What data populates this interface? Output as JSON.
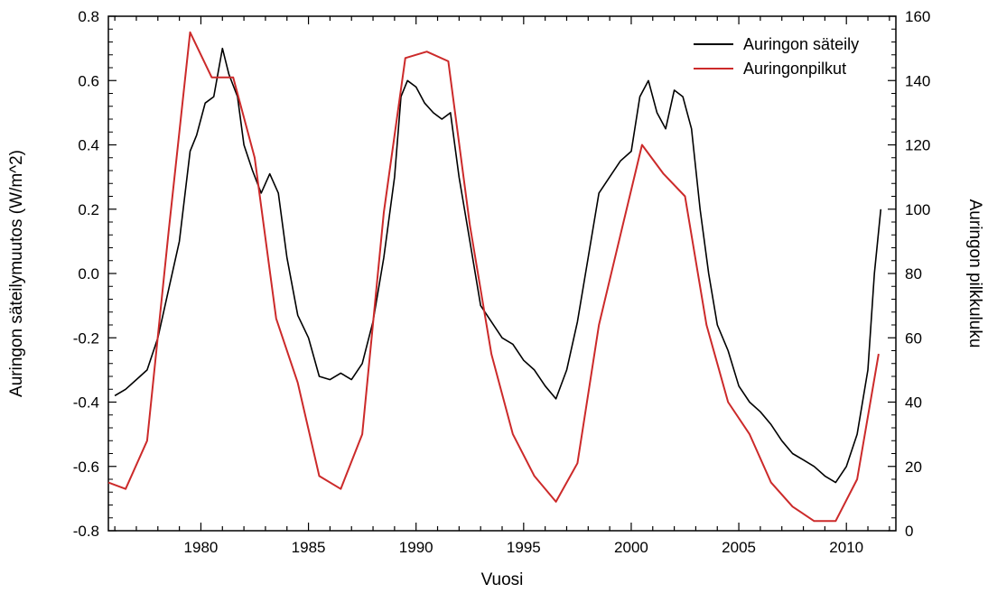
{
  "chart_data": {
    "type": "line",
    "title": "",
    "xlabel": "Vuosi",
    "ylabel_left": "Auringon säteilymuutos (W/m^2)",
    "ylabel_right": "Auringon pilkkuluku",
    "xlim": [
      1975.7,
      2012.3
    ],
    "ylim_left": [
      -0.8,
      0.8
    ],
    "ylim_right": [
      0,
      160
    ],
    "xticks": [
      "1980",
      "1985",
      "1990",
      "1995",
      "2000",
      "2005",
      "2010"
    ],
    "yticks_left": [
      "-0.8",
      "-0.6",
      "-0.4",
      "-0.2",
      "0.0",
      "0.2",
      "0.4",
      "0.6",
      "0.8"
    ],
    "yticks_right": [
      "0",
      "20",
      "40",
      "60",
      "80",
      "100",
      "120",
      "140",
      "160"
    ],
    "grid": false,
    "legend_position": "top-right",
    "series": [
      {
        "name": "Auringon säteily",
        "axis": "left",
        "color": "#000000",
        "x": [
          1976.0,
          1976.5,
          1977.0,
          1977.5,
          1978.0,
          1978.5,
          1979.0,
          1979.5,
          1979.8,
          1980.2,
          1980.6,
          1981.0,
          1981.3,
          1981.7,
          1982.0,
          1982.4,
          1982.8,
          1983.2,
          1983.6,
          1984.0,
          1984.5,
          1985.0,
          1985.5,
          1986.0,
          1986.5,
          1987.0,
          1987.5,
          1988.0,
          1988.5,
          1989.0,
          1989.3,
          1989.6,
          1990.0,
          1990.4,
          1990.8,
          1991.2,
          1991.6,
          1992.0,
          1992.5,
          1993.0,
          1993.5,
          1994.0,
          1994.5,
          1995.0,
          1995.5,
          1996.0,
          1996.5,
          1997.0,
          1997.5,
          1998.0,
          1998.5,
          1999.0,
          1999.5,
          2000.0,
          2000.4,
          2000.8,
          2001.2,
          2001.6,
          2002.0,
          2002.4,
          2002.8,
          2003.2,
          2003.6,
          2004.0,
          2004.5,
          2005.0,
          2005.5,
          2006.0,
          2006.5,
          2007.0,
          2007.5,
          2008.0,
          2008.5,
          2009.0,
          2009.5,
          2010.0,
          2010.5,
          2011.0,
          2011.3,
          2011.6
        ],
        "values": [
          -0.38,
          -0.36,
          -0.33,
          -0.3,
          -0.2,
          -0.05,
          0.1,
          0.38,
          0.43,
          0.53,
          0.55,
          0.7,
          0.62,
          0.55,
          0.4,
          0.32,
          0.25,
          0.31,
          0.25,
          0.05,
          -0.13,
          -0.2,
          -0.32,
          -0.33,
          -0.31,
          -0.33,
          -0.28,
          -0.15,
          0.05,
          0.3,
          0.55,
          0.6,
          0.58,
          0.53,
          0.5,
          0.48,
          0.5,
          0.3,
          0.1,
          -0.1,
          -0.15,
          -0.2,
          -0.22,
          -0.27,
          -0.3,
          -0.35,
          -0.39,
          -0.3,
          -0.15,
          0.05,
          0.25,
          0.3,
          0.35,
          0.38,
          0.55,
          0.6,
          0.5,
          0.45,
          0.57,
          0.55,
          0.45,
          0.2,
          0.0,
          -0.16,
          -0.24,
          -0.35,
          -0.4,
          -0.43,
          -0.47,
          -0.52,
          -0.56,
          -0.58,
          -0.6,
          -0.63,
          -0.65,
          -0.6,
          -0.5,
          -0.3,
          0.0,
          0.2
        ]
      },
      {
        "name": "Auringonpilkut",
        "axis": "right",
        "color": "#cc2a2a",
        "x": [
          1975.7,
          1976.5,
          1977.5,
          1978.5,
          1979.5,
          1980.5,
          1981.5,
          1982.5,
          1983.5,
          1984.5,
          1985.5,
          1986.5,
          1987.5,
          1988.5,
          1989.5,
          1990.5,
          1991.5,
          1992.5,
          1993.5,
          1994.5,
          1995.5,
          1996.5,
          1997.5,
          1998.5,
          1999.5,
          2000.5,
          2001.5,
          2002.5,
          2003.5,
          2004.5,
          2005.5,
          2006.5,
          2007.5,
          2008.5,
          2009.5,
          2010.5,
          2011.5
        ],
        "values": [
          15,
          13,
          28,
          93,
          155,
          141,
          141,
          116,
          66,
          46,
          17,
          13,
          30,
          99,
          147,
          149,
          146,
          95,
          55,
          30,
          17,
          9,
          21,
          64,
          92,
          120,
          111,
          104,
          64,
          40,
          30,
          15,
          7.5,
          3,
          3,
          16,
          55
        ]
      }
    ]
  }
}
